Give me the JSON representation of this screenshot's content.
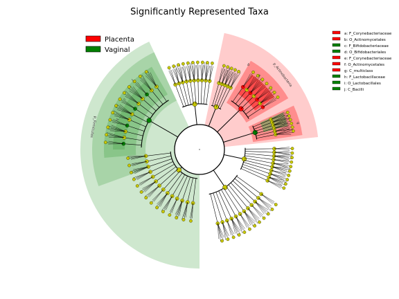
{
  "title": "Significantly Represented Taxa",
  "groups": [
    {
      "label": "Placenta",
      "color": "#ff0000"
    },
    {
      "label": "Vaginal",
      "color": "#008000"
    }
  ],
  "taxa_legend": [
    {
      "code": "a",
      "name": "F_Corynebacteriaceae",
      "color": "#ff0000"
    },
    {
      "code": "b",
      "name": "O_Actinomycetales",
      "color": "#ff0000"
    },
    {
      "code": "c",
      "name": "F_Bifidobacteriaceae",
      "color": "#008000"
    },
    {
      "code": "d",
      "name": "O_Bifidobacteriales",
      "color": "#008000"
    },
    {
      "code": "e",
      "name": "F_Corynebacteriaceae",
      "color": "#ff0000"
    },
    {
      "code": "f",
      "name": "O_Actinomycetales",
      "color": "#ff0000"
    },
    {
      "code": "g",
      "name": "C_multiclass",
      "color": "#ff0000"
    },
    {
      "code": "h",
      "name": "F_Lactobacillaceae",
      "color": "#008000"
    },
    {
      "code": "i",
      "name": "O_Lactobacillales",
      "color": "#008000"
    },
    {
      "code": "j",
      "name": "C_Bacilli",
      "color": "#008000"
    }
  ],
  "arc_labels": {
    "actinobacteria": "p_Actinobacteria",
    "firmicutes": "p_Firmicutes",
    "a": "a",
    "b": "b",
    "c": "c",
    "d": "d",
    "e": "e",
    "f": "f",
    "g": "g",
    "h": "h",
    "i": "i",
    "j": "j"
  },
  "colors": {
    "placenta_fill": "#ff9a9a",
    "vaginal_fill": "#4fa84f",
    "node_neutral": "#c8c800",
    "node_placenta": "#ff0000",
    "node_vaginal": "#008000"
  }
}
